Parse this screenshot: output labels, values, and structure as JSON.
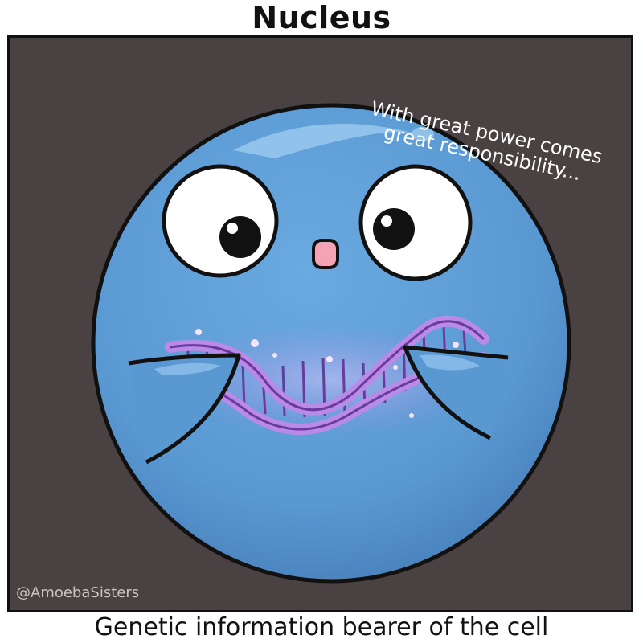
{
  "title": "Nucleus",
  "quote": "With great power comes great responsibility...",
  "watermark": "@AmoebaSisters",
  "caption": "Genetic information bearer of the cell",
  "colors": {
    "panel_background": "#4a4242",
    "nucleus_blue": "#5f9fd6",
    "dna_purple": "#b98ae6",
    "nose_pink": "#f4a3b5"
  },
  "icons": {
    "character": "nucleus-character",
    "dna": "dna-double-helix"
  }
}
